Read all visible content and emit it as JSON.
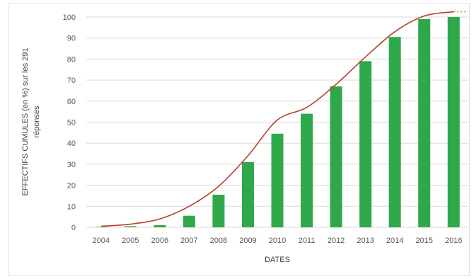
{
  "chart_data": {
    "type": "bar",
    "categories": [
      "2004",
      "2005",
      "2006",
      "2007",
      "2008",
      "2009",
      "2010",
      "2011",
      "2012",
      "2013",
      "2014",
      "2015",
      "2016"
    ],
    "series": [
      {
        "values": [
          0.2,
          0.5,
          1,
          5.5,
          15.5,
          31,
          44.5,
          54,
          67,
          79,
          90.5,
          99,
          100
        ]
      }
    ],
    "trendline": {
      "type": "line",
      "values": [
        0.5,
        1.5,
        4,
        10,
        19.5,
        34,
        51,
        57,
        68,
        81,
        93,
        100.5,
        102.5
      ]
    },
    "xlabel": "DATES",
    "ylabel_lines": [
      "EFFECTIFS CUMULES (en %) sur les 291",
      "réponses"
    ],
    "yticks": [
      "0",
      "10",
      "20",
      "30",
      "40",
      "50",
      "60",
      "70",
      "80",
      "90",
      "100"
    ],
    "ylim": [
      0,
      100
    ],
    "grid": true,
    "legend": "none",
    "colors": {
      "bar": "#2ea84a",
      "trend": "#b5402a",
      "trend_dotted": "#d98a2a",
      "grid": "#d9d9d9"
    }
  }
}
